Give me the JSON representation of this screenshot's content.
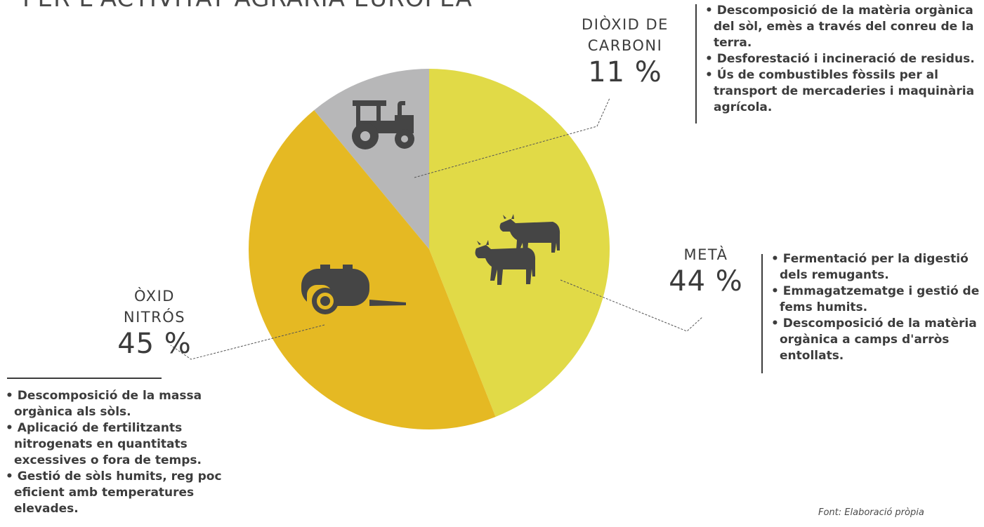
{
  "title": "PER L'ACTIVITAT AGRÀRIA EUROPEA",
  "chart_data": {
    "type": "pie",
    "slices": [
      {
        "name_lines": [
          "DIÒXID DE",
          "CARBONI"
        ],
        "value": 11,
        "value_label": "11 %",
        "color": "#b7b7b8",
        "icon": "tractor-icon"
      },
      {
        "name_lines": [
          "METÀ"
        ],
        "value": 44,
        "value_label": "44 %",
        "color": "#e1da47",
        "icon": "cows-icon"
      },
      {
        "name_lines": [
          "ÒXID",
          "NITRÓS"
        ],
        "value": 45,
        "value_label": "45 %",
        "color": "#e5b923",
        "icon": "slurry-tanker-icon"
      }
    ]
  },
  "notes": {
    "co2": [
      "Descomposició de la matèria orgànica del sòl, emès a través del conreu de la terra.",
      "Desforestació i incineració de residus.",
      "Ús de combustibles fòssils per al transport de mercaderies i maquinària agrícola."
    ],
    "methane": [
      "Fermentació per la digestió dels remugants.",
      "Emmagatzematge i gestió de fems humits.",
      "Descomposició de la matèria orgànica a camps d'arròs entollats."
    ],
    "n2o": [
      "Descomposició de la massa orgànica als sòls.",
      "Aplicació de fertilitzants nitrogenats en quantitats excessives o fora de temps.",
      "Gestió de sòls humits, reg poc eficient amb temperatures elevades."
    ]
  },
  "source": "Font: Elaboració pròpia"
}
